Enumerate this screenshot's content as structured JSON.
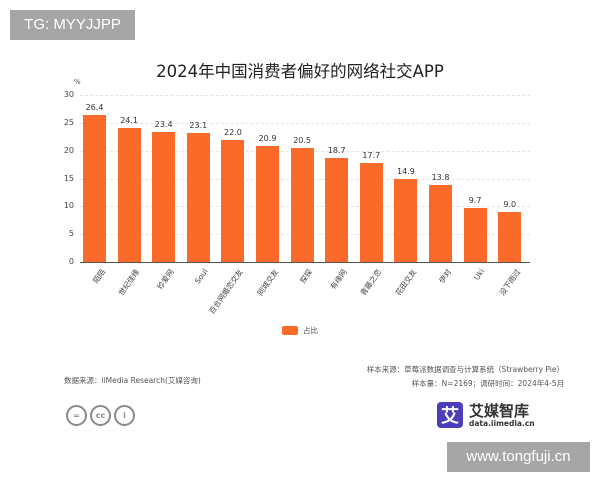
{
  "watermarks": {
    "top_left": "TG: MYYJJPP",
    "bottom_right": "www.tongfuji.cn"
  },
  "chart_data": {
    "type": "bar",
    "title": "2024年中国消费者偏好的网络社交APP",
    "ylabel": "%",
    "xlabel": "",
    "ylim": [
      0,
      30
    ],
    "yticks": [
      0,
      5,
      10,
      15,
      20,
      25,
      30
    ],
    "grid": true,
    "legend_position": "bottom",
    "categories": [
      "陌陌",
      "世纪佳缘",
      "珍爱网",
      "Soul",
      "百合网婚恋交友",
      "同城交友",
      "探探",
      "有缘网",
      "青藤之恋",
      "花田交友",
      "伊对",
      "Uki",
      "没下雨过"
    ],
    "series": [
      {
        "name": "占比",
        "color": "#fb6a28",
        "values": [
          26.4,
          24.1,
          23.4,
          23.1,
          22.0,
          20.9,
          20.5,
          18.7,
          17.7,
          14.9,
          13.8,
          9.7,
          9.0
        ],
        "labels": [
          "26.4",
          "24.1",
          "23.4",
          "23.1",
          "22.0",
          "20.9",
          "20.5",
          "18.7",
          "17.7",
          "14.9",
          "13.8",
          "9.7",
          "9.0"
        ]
      }
    ]
  },
  "legend": {
    "label": "占比"
  },
  "footer": {
    "data_source": "数据来源：iiMedia Research(艾媒咨询)",
    "sample_source": "样本来源：草莓派数据调查与计算系统（Strawberry Pie）",
    "sample_info": "样本量：N=2169；调研时间：2024年4-5月",
    "license_icons": [
      "cc-nd-icon",
      "cc-icon",
      "cc-by-icon"
    ],
    "license_glyphs": [
      "=",
      "cc",
      "i"
    ],
    "logo": {
      "mark": "艾",
      "name": "艾媒智库",
      "url": "data.iimedia.cn"
    }
  }
}
